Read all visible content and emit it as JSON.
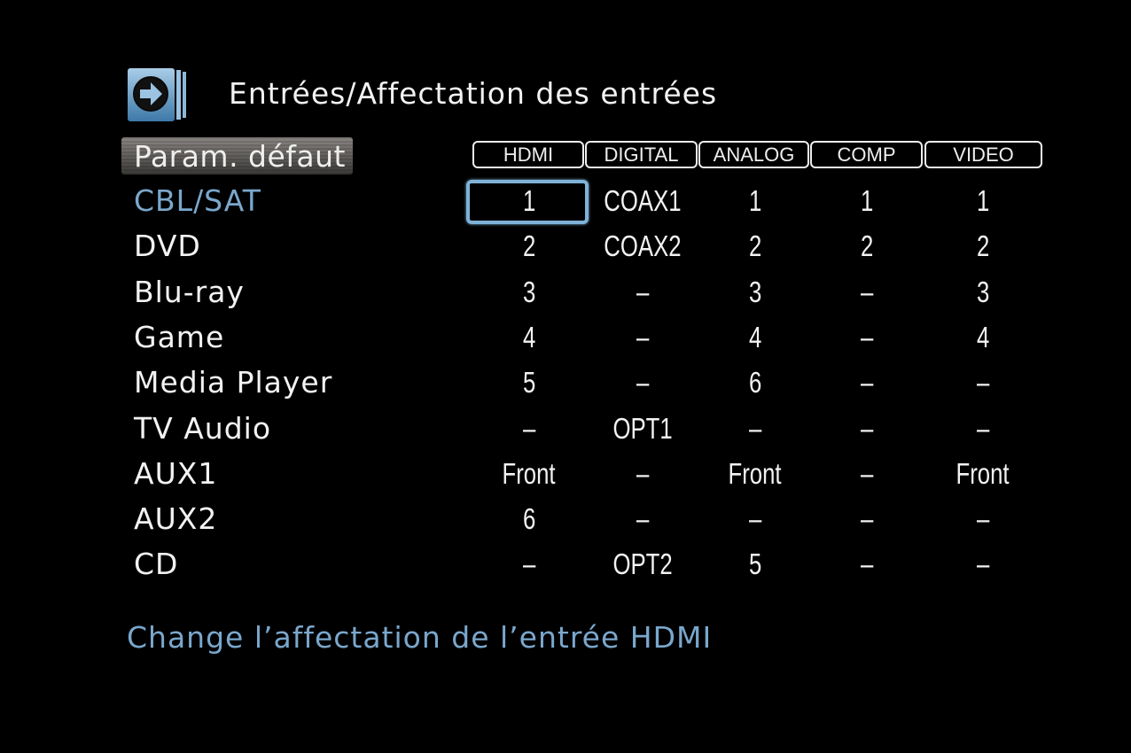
{
  "header": {
    "title": "Entrées/Affectation des entrées",
    "icon": "arrow-right-circle-icon"
  },
  "default_button": {
    "label": "Param. défaut"
  },
  "columns": [
    "HDMI",
    "DIGITAL",
    "ANALOG",
    "COMP",
    "VIDEO"
  ],
  "rows": [
    {
      "label": "CBL/SAT",
      "values": [
        "1",
        "COAX1",
        "1",
        "1",
        "1"
      ],
      "selected": true
    },
    {
      "label": "DVD",
      "values": [
        "2",
        "COAX2",
        "2",
        "2",
        "2"
      ]
    },
    {
      "label": "Blu-ray",
      "values": [
        "3",
        "–",
        "3",
        "–",
        "3"
      ]
    },
    {
      "label": "Game",
      "values": [
        "4",
        "–",
        "4",
        "–",
        "4"
      ]
    },
    {
      "label": "Media Player",
      "values": [
        "5",
        "–",
        "6",
        "–",
        "–"
      ]
    },
    {
      "label": "TV Audio",
      "values": [
        "–",
        "OPT1",
        "–",
        "–",
        "–"
      ]
    },
    {
      "label": "AUX1",
      "values": [
        "Front",
        "–",
        "Front",
        "–",
        "Front"
      ]
    },
    {
      "label": "AUX2",
      "values": [
        "6",
        "–",
        "–",
        "–",
        "–"
      ]
    },
    {
      "label": "CD",
      "values": [
        "–",
        "OPT2",
        "5",
        "–",
        "–"
      ]
    }
  ],
  "footer": {
    "help_text": "Change l’affectation de l’entrée HDMI"
  },
  "colors": {
    "accent": "#7aa7cc",
    "background": "#000000",
    "text": "#f2f2f2"
  }
}
